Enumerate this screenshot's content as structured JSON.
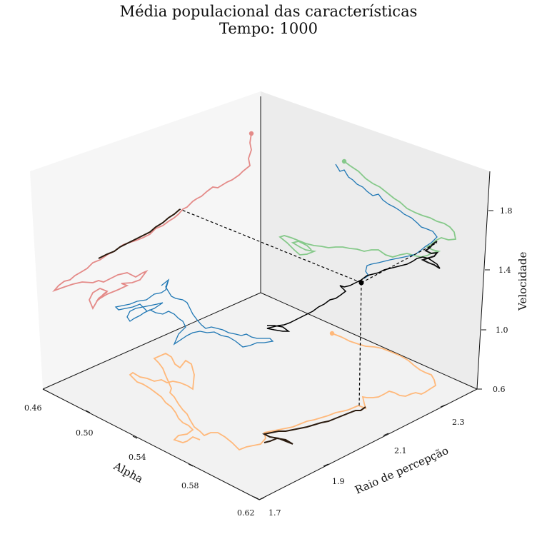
{
  "chart_data": {
    "type": "line",
    "projection": "3d",
    "title": "Média populacional das características",
    "subtitle": "Tempo: 1000",
    "axes": {
      "x": {
        "label": "Alpha",
        "ticks": [
          "0.46",
          "0.50",
          "0.54",
          "0.58",
          "0.62"
        ],
        "range": [
          0.46,
          0.62
        ]
      },
      "y": {
        "label": "Raio de percepção",
        "ticks": [
          "1.7",
          "1.9",
          "2.1",
          "2.3"
        ],
        "range": [
          1.7,
          2.4
        ]
      },
      "z": {
        "label": "Velocidade",
        "ticks": [
          "0.6",
          "1.0",
          "1.4",
          "1.8"
        ],
        "range": [
          0.6,
          2.0
        ]
      }
    },
    "current_point": {
      "alpha": 0.615,
      "raio": 2.05,
      "velocidade": 1.3
    },
    "series": [
      {
        "role": "trajetória 3D",
        "color": "#000000"
      },
      {
        "role": "projeção Alpha × Raio de percepção",
        "color": "#ffb87a"
      },
      {
        "role": "projeção Raio de percepção × Velocidade",
        "color": "#86c98a"
      },
      {
        "role": "projeção Alpha × Velocidade",
        "color": "#e48a88"
      },
      {
        "role": "trajetória 2D",
        "color": "#1f77b4"
      },
      {
        "role": "histórico recente",
        "color": "#2a1a0e"
      }
    ],
    "grid": false,
    "panes": {
      "left": "#f6f6f6",
      "right": "#ececec",
      "floor": "#f2f2f2"
    }
  }
}
